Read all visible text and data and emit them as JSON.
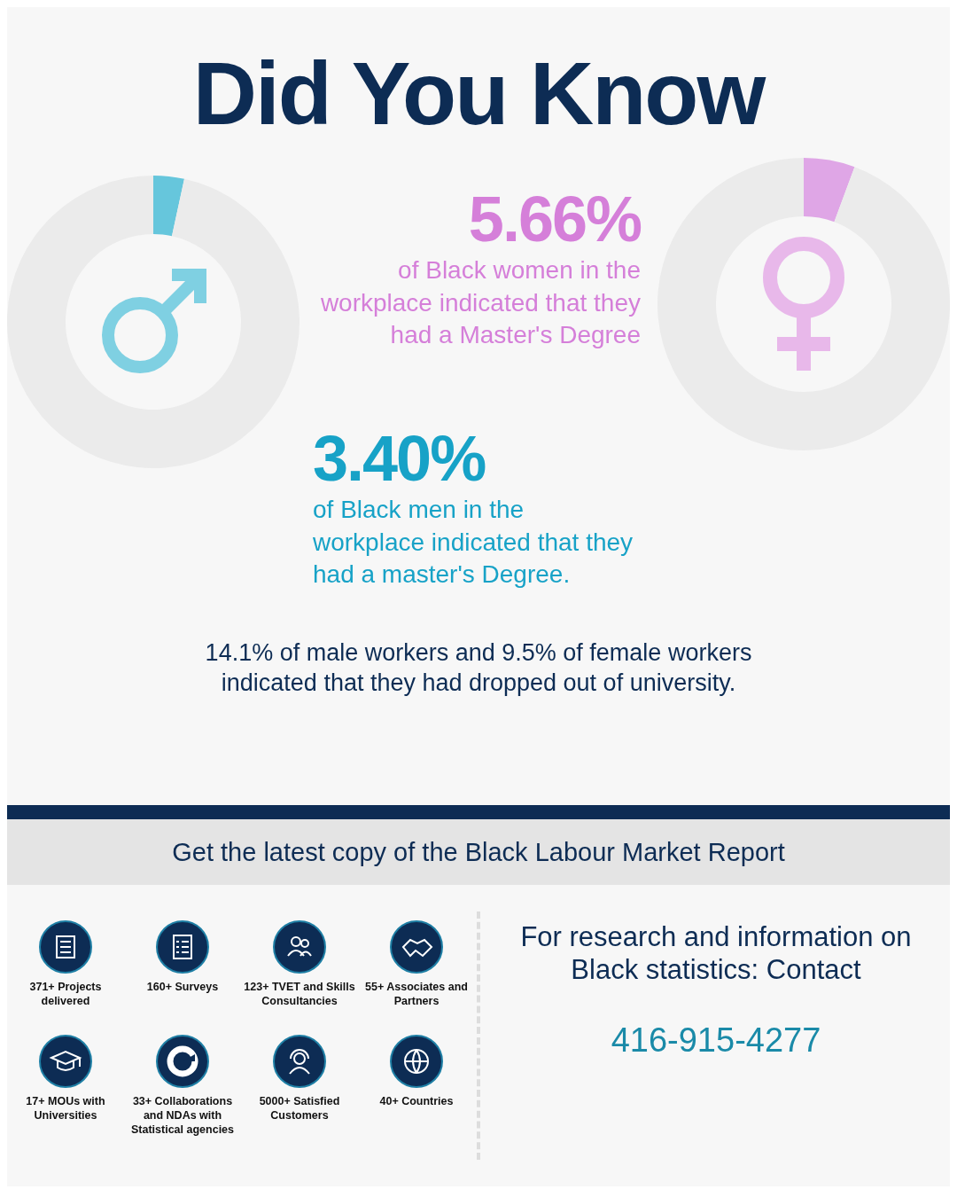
{
  "chart_data": [
    {
      "type": "donut",
      "categories": [
        null,
        null
      ],
      "values": [
        3.4,
        96.6
      ],
      "colors": [
        "#66c6dc",
        "#ebebeb"
      ],
      "annotations": [
        "3.40%",
        "of Black men in the workplace indicated that they had a master's Degree."
      ]
    },
    {
      "type": "donut",
      "categories": [
        null,
        null
      ],
      "values": [
        5.66,
        94.34
      ],
      "colors": [
        "#dfa6e6",
        "#ebebeb"
      ],
      "annotations": [
        "5.66%",
        "of Black women in the workplace indicated that they had a Master's Degree"
      ]
    },
    {
      "type": "other",
      "title": "Did You Know",
      "annotations": [
        "14.1% of male workers and 9.5% of female workers indicated that they had dropped out of university.",
        "Get the latest copy of the Black Labour Market Report",
        "371+ Projects delivered",
        "160+ Surveys",
        "123+ TVET and Skills Consultancies",
        "55+ Associates and Partners",
        "17+ MOUs with Universities",
        "33+ Collaborations and NDAs with Statistical agencies",
        "5000+ Satisfied Customers",
        "40+ Countries",
        "For research and information on Black statistics: Contact",
        "416-915-4277"
      ]
    }
  ]
}
